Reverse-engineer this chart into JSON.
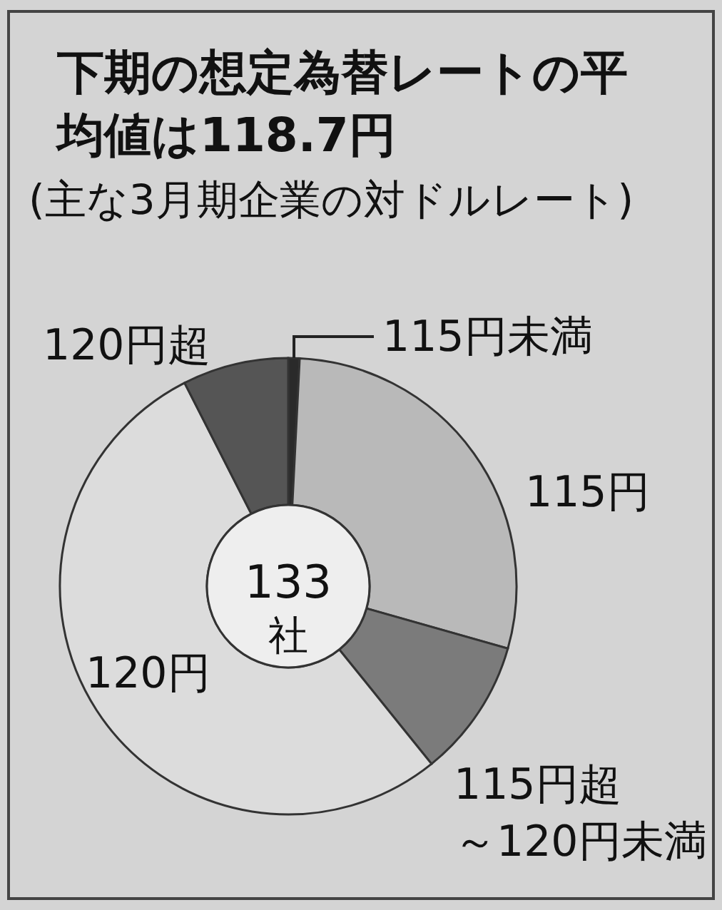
{
  "chart_data": {
    "type": "donut",
    "title": "下期の想定為替レートの平均値は118.7円",
    "subtitle": "(主な3月期企業の対ドルレート)",
    "categories": [
      "115円未満",
      "115円",
      "115円超～120円未満",
      "120円",
      "120円超"
    ],
    "values": [
      0.8,
      28.6,
      9.8,
      53.3,
      7.5
    ],
    "colors": [
      "#2a2a2a",
      "#b9b9b9",
      "#7b7b7b",
      "#dcdcdc",
      "#555555"
    ],
    "annotations": [
      "133",
      "社"
    ]
  }
}
